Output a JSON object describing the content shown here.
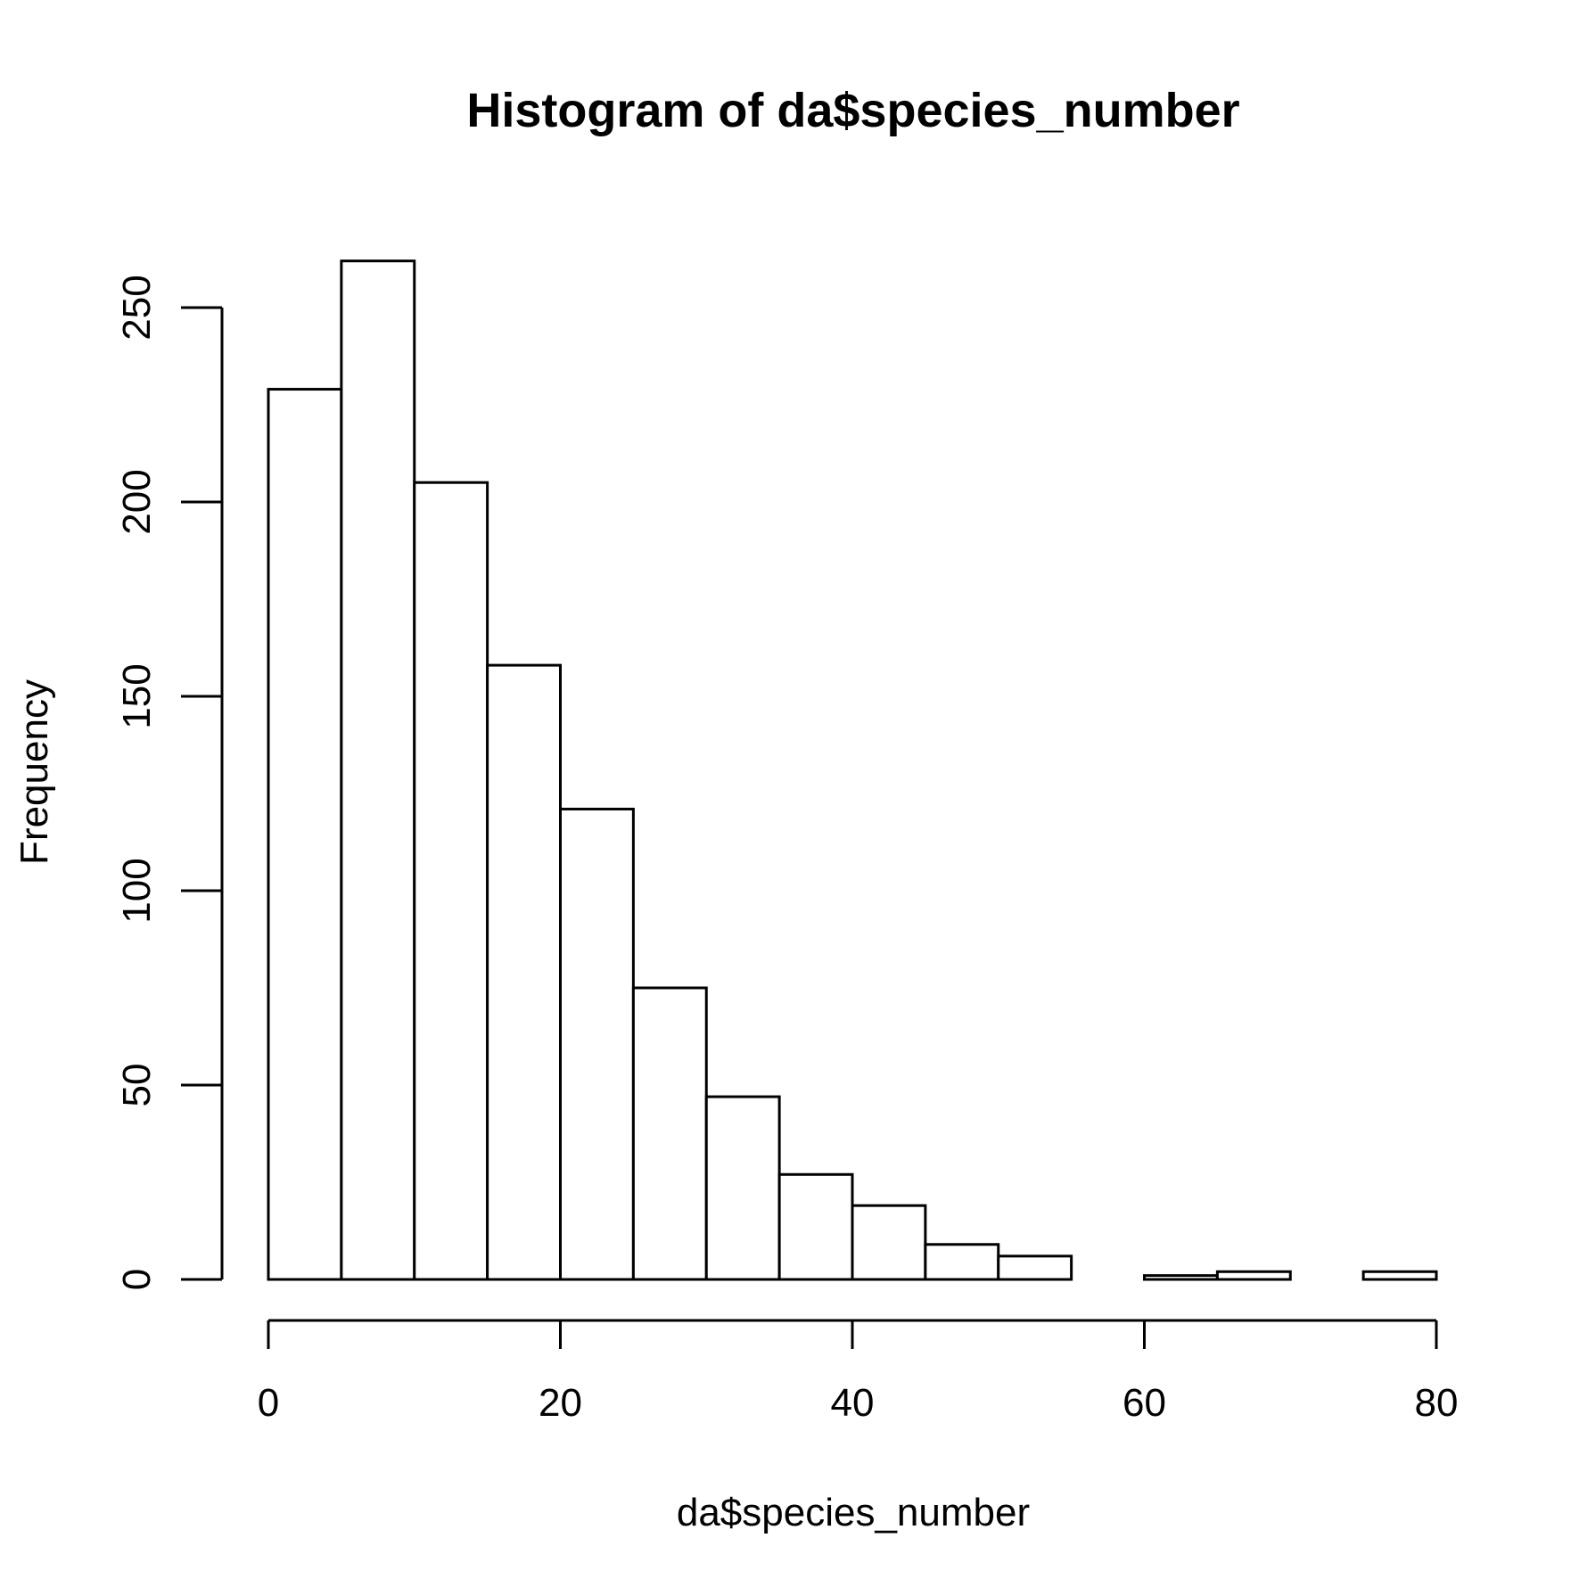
{
  "chart_data": {
    "type": "bar",
    "title": "Histogram of da$species_number",
    "xlabel": "da$species_number",
    "ylabel": "Frequency",
    "bins": [
      {
        "x0": 0,
        "x1": 5,
        "count": 229
      },
      {
        "x0": 5,
        "x1": 10,
        "count": 262
      },
      {
        "x0": 10,
        "x1": 15,
        "count": 205
      },
      {
        "x0": 15,
        "x1": 20,
        "count": 158
      },
      {
        "x0": 20,
        "x1": 25,
        "count": 121
      },
      {
        "x0": 25,
        "x1": 30,
        "count": 75
      },
      {
        "x0": 30,
        "x1": 35,
        "count": 47
      },
      {
        "x0": 35,
        "x1": 40,
        "count": 27
      },
      {
        "x0": 40,
        "x1": 45,
        "count": 19
      },
      {
        "x0": 45,
        "x1": 50,
        "count": 9
      },
      {
        "x0": 50,
        "x1": 55,
        "count": 6
      },
      {
        "x0": 55,
        "x1": 60,
        "count": 0
      },
      {
        "x0": 60,
        "x1": 65,
        "count": 1
      },
      {
        "x0": 65,
        "x1": 70,
        "count": 2
      },
      {
        "x0": 70,
        "x1": 75,
        "count": 0
      },
      {
        "x0": 75,
        "x1": 80,
        "count": 2
      }
    ],
    "xlim": [
      0,
      80
    ],
    "ylim": [
      0,
      262
    ],
    "xticks": [
      0,
      20,
      40,
      60,
      80
    ],
    "yticks": [
      0,
      50,
      100,
      150,
      200,
      250
    ],
    "xtick_labels": [
      "0",
      "20",
      "40",
      "60",
      "80"
    ],
    "ytick_labels": [
      "0",
      "50",
      "100",
      "150",
      "200",
      "250"
    ],
    "grid": false,
    "legend": "none"
  }
}
